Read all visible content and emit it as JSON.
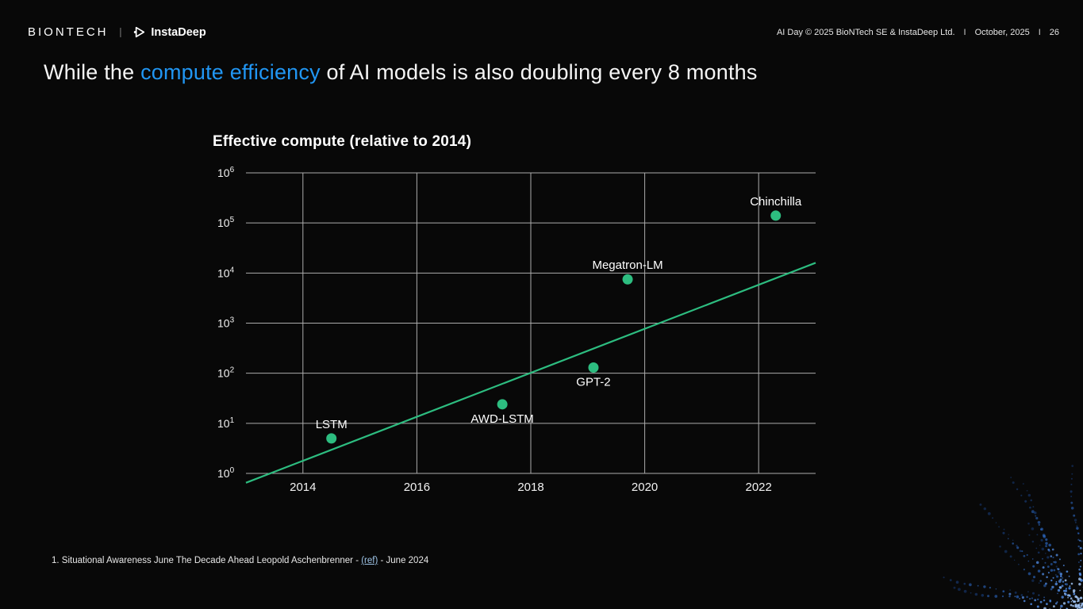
{
  "header": {
    "biontech_logo_text": "BIONTECH",
    "divider": "|",
    "instadeep_logo_text": "InstaDeep",
    "meta_left": "AI Day © 2025 BioNTech SE & InstaDeep Ltd.",
    "meta_sep1": "I",
    "meta_date": "October, 2025",
    "meta_sep2": "I",
    "meta_page": "26"
  },
  "title": {
    "pre": "While the ",
    "highlight": "compute efficiency",
    "post": " of AI models is also doubling every 8 months"
  },
  "colors": {
    "highlight_blue": "#2196f3",
    "series_green": "#2dbd80",
    "gridline": "#c9c9c9",
    "text": "#f2f2f2",
    "link_blue": "#9fc5e8",
    "background": "#080808"
  },
  "chart_data": {
    "type": "scatter",
    "title": "Effective compute (relative to 2014)",
    "xlabel": "",
    "ylabel": "",
    "x_range": [
      2013,
      2023
    ],
    "x_ticks": [
      2014,
      2016,
      2018,
      2020,
      2022
    ],
    "y_scale": "log10",
    "y_tick_base": "10",
    "y_tick_exponents": [
      0,
      1,
      2,
      3,
      4,
      5,
      6
    ],
    "grid": true,
    "legend": false,
    "points": [
      {
        "label": "LSTM",
        "year": 2014.5,
        "value": 5,
        "label_position": "above"
      },
      {
        "label": "AWD-LSTM",
        "year": 2017.5,
        "value": 24,
        "label_position": "below"
      },
      {
        "label": "GPT-2",
        "year": 2019.1,
        "value": 130,
        "label_position": "below"
      },
      {
        "label": "Megatron-LM",
        "year": 2019.7,
        "value": 7500,
        "label_position": "above"
      },
      {
        "label": "Chinchilla",
        "year": 2022.3,
        "value": 140000,
        "label_position": "above"
      }
    ],
    "trend_line": {
      "start": {
        "year": 2013,
        "value": 0.65
      },
      "end": {
        "year": 2023,
        "value": 16000
      }
    }
  },
  "footnote": {
    "pre": "1. Situational Awareness June The Decade Ahead Leopold Aschenbrenner - ",
    "link": "(ref)",
    "post": " - June 2024"
  }
}
